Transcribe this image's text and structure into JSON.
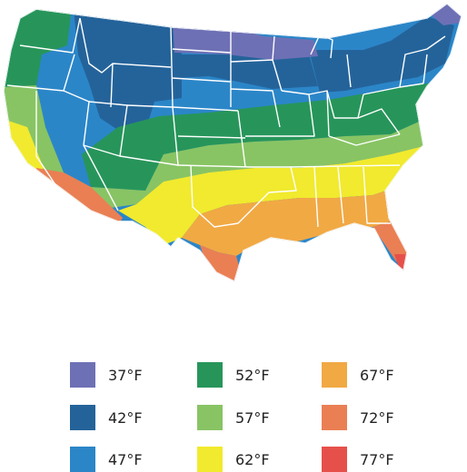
{
  "colors": {
    "band_37": "#6e70b5",
    "band_42": "#24639a",
    "band_47": "#2b86c8",
    "band_52": "#27955a",
    "band_57": "#88c464",
    "band_62": "#f1ea2e",
    "band_67": "#f1a944",
    "band_72": "#ea7f54",
    "band_77": "#e6504a",
    "state_border": "#ffffff"
  },
  "legend": {
    "items": [
      {
        "label": "37°F",
        "color": "#6e70b5"
      },
      {
        "label": "42°F",
        "color": "#24639a"
      },
      {
        "label": "47°F",
        "color": "#2b86c8"
      },
      {
        "label": "52°F",
        "color": "#27955a"
      },
      {
        "label": "57°F",
        "color": "#88c464"
      },
      {
        "label": "62°F",
        "color": "#f1ea2e"
      },
      {
        "label": "67°F",
        "color": "#f1a944"
      },
      {
        "label": "72°F",
        "color": "#ea7f54"
      },
      {
        "label": "77°F",
        "color": "#e6504a"
      }
    ]
  }
}
